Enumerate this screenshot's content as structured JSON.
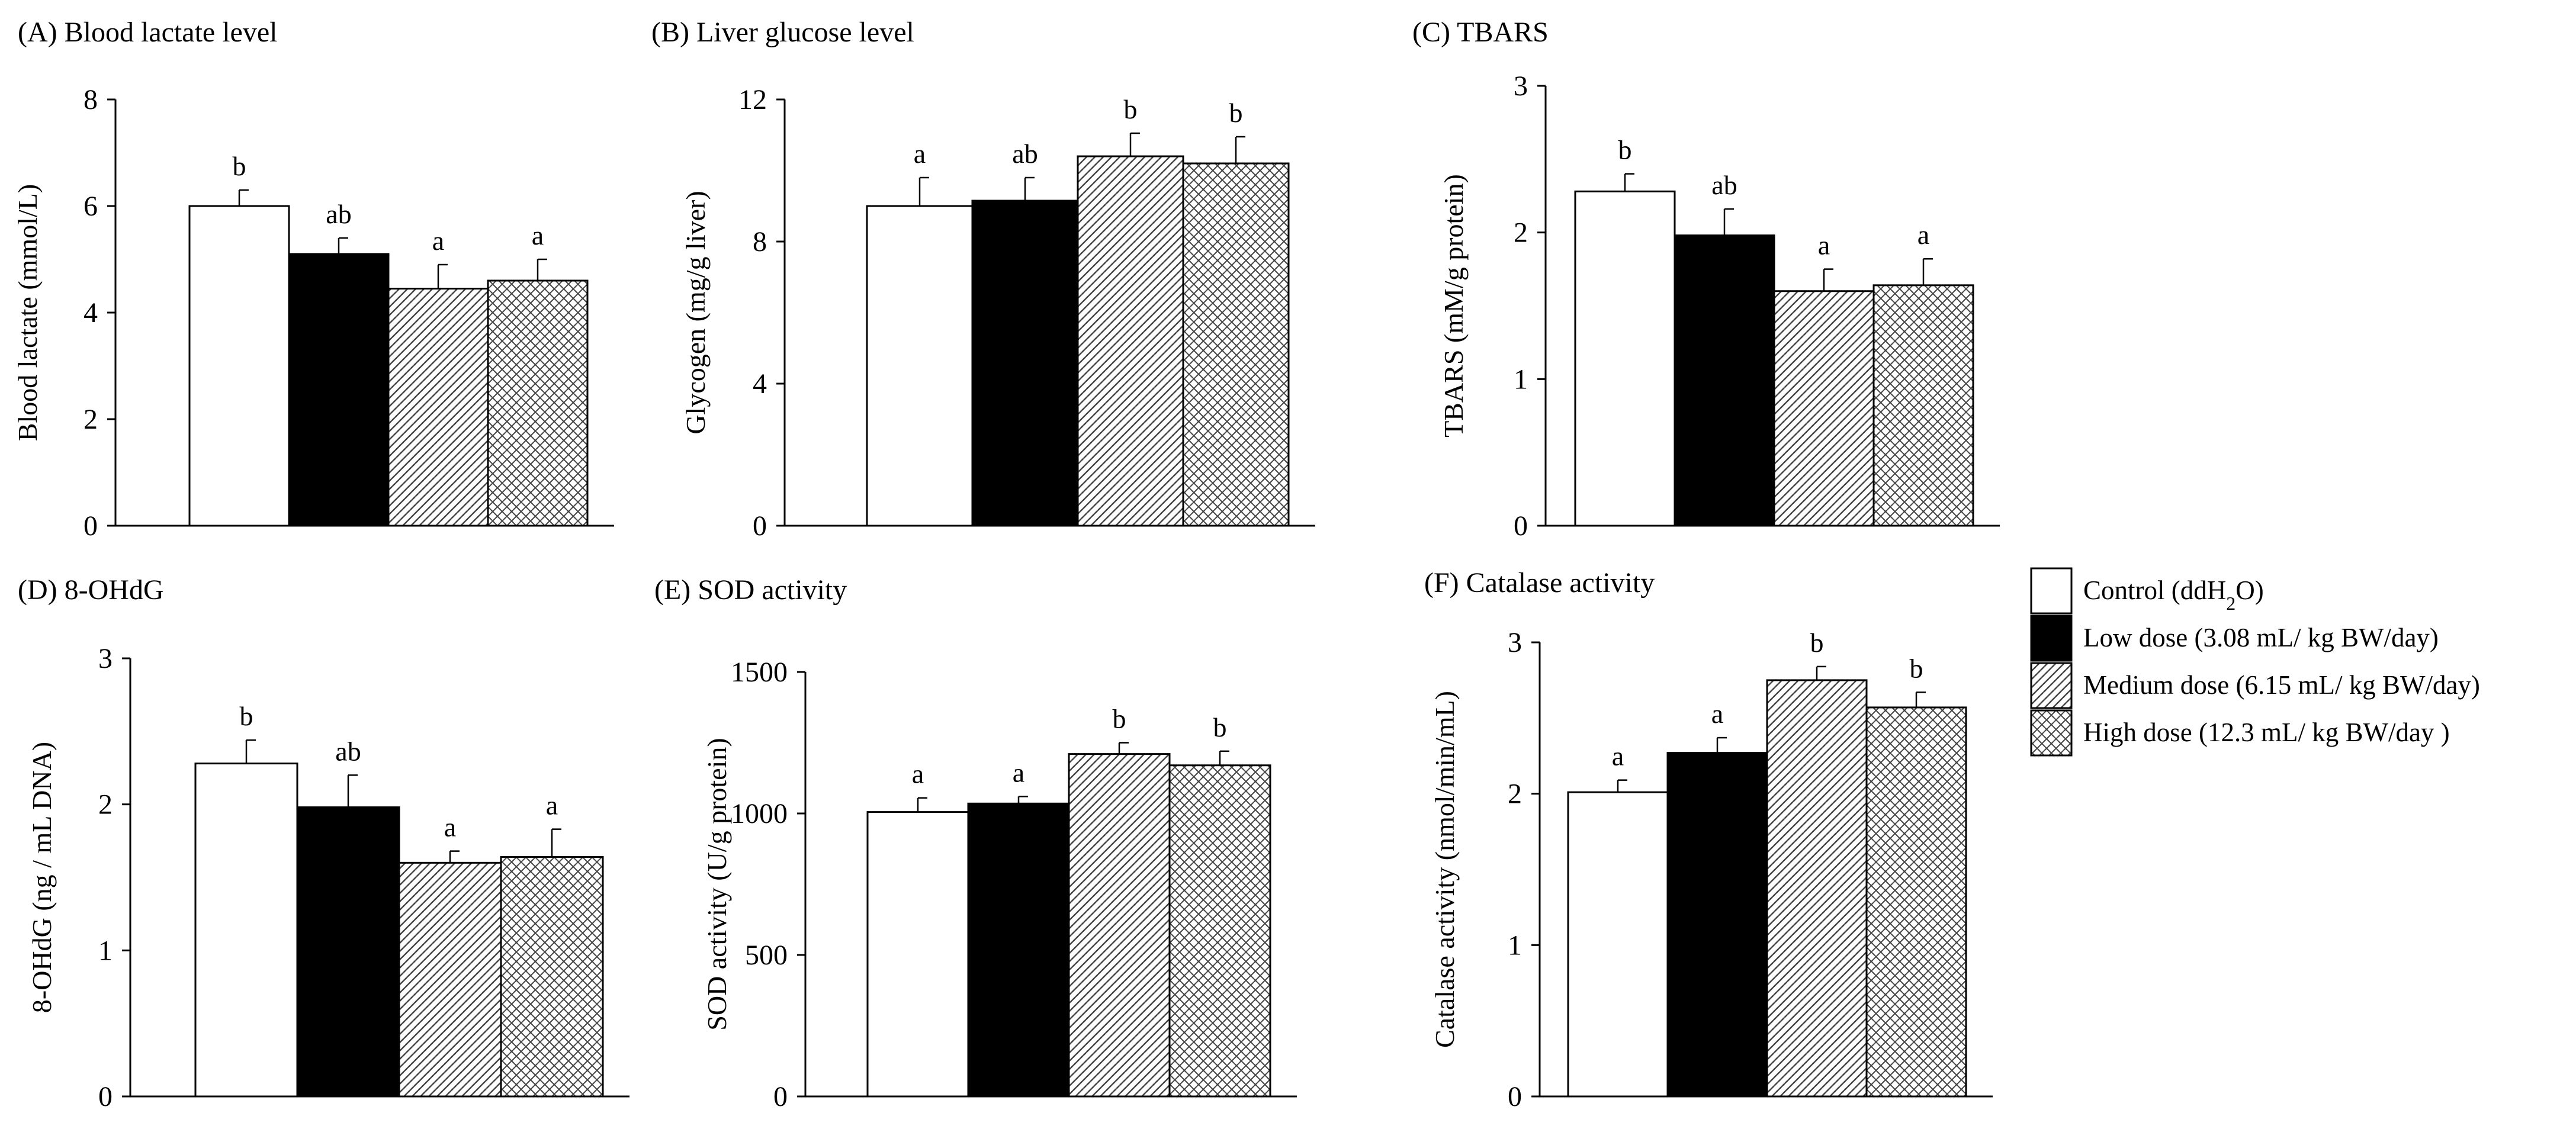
{
  "legend": {
    "items": [
      {
        "label": "Control (ddH",
        "sub": "2",
        "after": "O)",
        "fill": "white"
      },
      {
        "label": "Low dose (3.08 mL/ kg BW/day)",
        "fill": "black"
      },
      {
        "label": "Medium dose (6.15 mL/ kg BW/day)",
        "fill": "diagonal"
      },
      {
        "label": "High dose (12.3 mL/ kg BW/day )",
        "fill": "crosshatch"
      }
    ]
  },
  "chart_data": [
    {
      "type": "bar",
      "title": "(A) Blood lactate level",
      "ylabel": "Blood lactate (mmol/L)",
      "ylim": [
        0,
        8
      ],
      "yticks": [
        "0",
        "2",
        "4",
        "6",
        "8"
      ],
      "series": [
        {
          "name": "Control (ddH2O)",
          "value": 6.0,
          "error": 0.3,
          "sig": "b"
        },
        {
          "name": "Low dose (3.08 mL/ kg BW/day)",
          "value": 5.1,
          "error": 0.3,
          "sig": "ab"
        },
        {
          "name": "Medium dose (6.15 mL/ kg BW/day)",
          "value": 4.45,
          "error": 0.45,
          "sig": "a"
        },
        {
          "name": "High dose (12.3 mL/ kg BW/day )",
          "value": 4.6,
          "error": 0.4,
          "sig": "a"
        }
      ]
    },
    {
      "type": "bar",
      "title": "(B) Liver glucose level",
      "ylabel": "Glycogen (mg/g liver)",
      "ylim": [
        0,
        12
      ],
      "yticks": [
        "0",
        "4",
        "8",
        "12"
      ],
      "series": [
        {
          "name": "Control (ddH2O)",
          "value": 9.0,
          "error": 0.8,
          "sig": "a"
        },
        {
          "name": "Low dose (3.08 mL/ kg BW/day)",
          "value": 9.15,
          "error": 0.65,
          "sig": "ab"
        },
        {
          "name": "Medium dose (6.15 mL/ kg BW/day)",
          "value": 10.4,
          "error": 0.65,
          "sig": "b"
        },
        {
          "name": "High dose (12.3 mL/ kg BW/day )",
          "value": 10.2,
          "error": 0.75,
          "sig": "b"
        }
      ]
    },
    {
      "type": "bar",
      "title": "(C) TBARS",
      "ylabel": "TBARS (mM/g protein)",
      "ylim": [
        0,
        3
      ],
      "yticks": [
        "0",
        "1",
        "2",
        "3"
      ],
      "series": [
        {
          "name": "Control (ddH2O)",
          "value": 2.28,
          "error": 0.12,
          "sig": "b"
        },
        {
          "name": "Low dose (3.08 mL/ kg BW/day)",
          "value": 1.98,
          "error": 0.18,
          "sig": "ab"
        },
        {
          "name": "Medium dose (6.15 mL/ kg BW/day)",
          "value": 1.6,
          "error": 0.15,
          "sig": "a"
        },
        {
          "name": "High dose (12.3 mL/ kg BW/day )",
          "value": 1.64,
          "error": 0.18,
          "sig": "a"
        }
      ]
    },
    {
      "type": "bar",
      "title": "(D) 8-OHdG",
      "ylabel": "8-OHdG (ng / mL DNA)",
      "ylim": [
        0,
        3
      ],
      "yticks": [
        "0",
        "1",
        "2",
        "3"
      ],
      "series": [
        {
          "name": "Control (ddH2O)",
          "value": 2.28,
          "error": 0.16,
          "sig": "b"
        },
        {
          "name": "Low dose (3.08 mL/ kg BW/day)",
          "value": 1.98,
          "error": 0.22,
          "sig": "ab"
        },
        {
          "name": "Medium dose (6.15 mL/ kg BW/day)",
          "value": 1.6,
          "error": 0.08,
          "sig": "a"
        },
        {
          "name": "High dose (12.3 mL/ kg BW/day )",
          "value": 1.64,
          "error": 0.19,
          "sig": "a"
        }
      ]
    },
    {
      "type": "bar",
      "title": "(E) SOD activity",
      "ylabel": "SOD activity (U/g protein)",
      "ylim": [
        0,
        1500
      ],
      "yticks": [
        "0",
        "500",
        "1000",
        "1500"
      ],
      "series": [
        {
          "name": "Control (ddH2O)",
          "value": 1005,
          "error": 50,
          "sig": "a"
        },
        {
          "name": "Low dose (3.08 mL/ kg BW/day)",
          "value": 1035,
          "error": 25,
          "sig": "a"
        },
        {
          "name": "Medium dose (6.15 mL/ kg BW/day)",
          "value": 1210,
          "error": 40,
          "sig": "b"
        },
        {
          "name": "High dose (12.3 mL/ kg BW/day )",
          "value": 1170,
          "error": 50,
          "sig": "b"
        }
      ]
    },
    {
      "type": "bar",
      "title": "(F) Catalase activity",
      "ylabel": "Catalase activity (nmol/min/mL)",
      "ylim": [
        0,
        3
      ],
      "yticks": [
        "0",
        "1",
        "2",
        "3"
      ],
      "series": [
        {
          "name": "Control (ddH2O)",
          "value": 2.01,
          "error": 0.08,
          "sig": "a"
        },
        {
          "name": "Low dose (3.08 mL/ kg BW/day)",
          "value": 2.27,
          "error": 0.1,
          "sig": "a"
        },
        {
          "name": "Medium dose (6.15 mL/ kg BW/day)",
          "value": 2.75,
          "error": 0.09,
          "sig": "b"
        },
        {
          "name": "High dose (12.3 mL/ kg BW/day )",
          "value": 2.57,
          "error": 0.1,
          "sig": "b"
        }
      ]
    }
  ]
}
